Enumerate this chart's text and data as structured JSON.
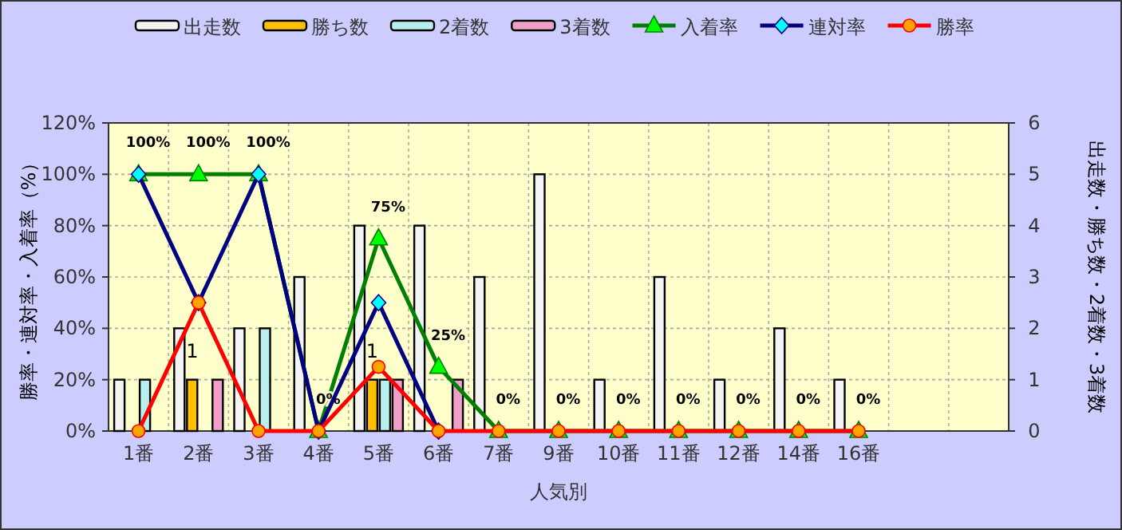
{
  "chart_data": {
    "type": "bar",
    "categories": [
      "1番",
      "2番",
      "3番",
      "4番",
      "5番",
      "6番",
      "7番",
      "9番",
      "10番",
      "11番",
      "12番",
      "14番",
      "16番",
      null,
      null
    ],
    "xlabel": "人気別",
    "ylabel": "勝率・連対率・入着率（%）",
    "y2label": "出走数・勝ち数・2着数・3着数",
    "ylim": [
      0,
      120
    ],
    "yticks": [
      {
        "value": 0,
        "label": "0%"
      },
      {
        "value": 20,
        "label": "20%"
      },
      {
        "value": 40,
        "label": "40%"
      },
      {
        "value": 60,
        "label": "60%"
      },
      {
        "value": 80,
        "label": "80%"
      },
      {
        "value": 100,
        "label": "100%"
      },
      {
        "value": 120,
        "label": "120%"
      }
    ],
    "y2lim": [
      0,
      6
    ],
    "y2ticks": [
      0,
      1,
      2,
      3,
      4,
      5,
      6
    ],
    "grid": true,
    "legend": "top",
    "series": [
      {
        "name": "出走数",
        "axis": "y2",
        "color": "#f4f4f4",
        "values": [
          1,
          2,
          2,
          3,
          4,
          4,
          3,
          5,
          1,
          3,
          1,
          2,
          1,
          null,
          null
        ]
      },
      {
        "name": "勝ち数",
        "axis": "y2",
        "color": "#ffc000",
        "values": [
          0,
          1,
          0,
          0,
          1,
          0,
          0,
          0,
          0,
          0,
          0,
          0,
          0,
          null,
          null
        ],
        "value_labels": [
          null,
          "1",
          null,
          null,
          "1",
          null,
          null,
          null,
          null,
          null,
          null,
          null,
          null,
          null,
          null
        ]
      },
      {
        "name": "2着数",
        "axis": "y2",
        "color": "#b8f0f0",
        "values": [
          1,
          0,
          2,
          0,
          1,
          0,
          0,
          0,
          0,
          0,
          0,
          0,
          0,
          null,
          null
        ]
      },
      {
        "name": "3着数",
        "axis": "y2",
        "color": "#f0a0c8",
        "values": [
          0,
          1,
          0,
          0,
          1,
          1,
          0,
          0,
          0,
          0,
          0,
          0,
          0,
          null,
          null
        ]
      },
      {
        "name": "入着率",
        "type": "line",
        "color": "#008000",
        "marker": "triangle",
        "values": [
          100,
          100,
          100,
          0,
          75,
          25,
          0,
          0,
          0,
          0,
          0,
          0,
          0,
          null,
          null
        ],
        "value_labels": [
          "100%",
          "100%",
          "100%",
          "0%",
          "75%",
          "25%",
          "0%",
          "0%",
          "0%",
          "0%",
          "0%",
          "0%",
          "0%",
          null,
          null
        ]
      },
      {
        "name": "連対率",
        "type": "line",
        "color": "#000080",
        "marker": "diamond",
        "values": [
          100,
          50,
          100,
          0,
          50,
          0,
          null,
          null,
          null,
          null,
          null,
          null,
          null,
          null,
          null
        ]
      },
      {
        "name": "勝率",
        "type": "line",
        "color": "#ff0000",
        "marker": "circle",
        "values": [
          0,
          50,
          0,
          0,
          25,
          0,
          0,
          0,
          0,
          0,
          0,
          0,
          0,
          null,
          null
        ]
      }
    ]
  }
}
